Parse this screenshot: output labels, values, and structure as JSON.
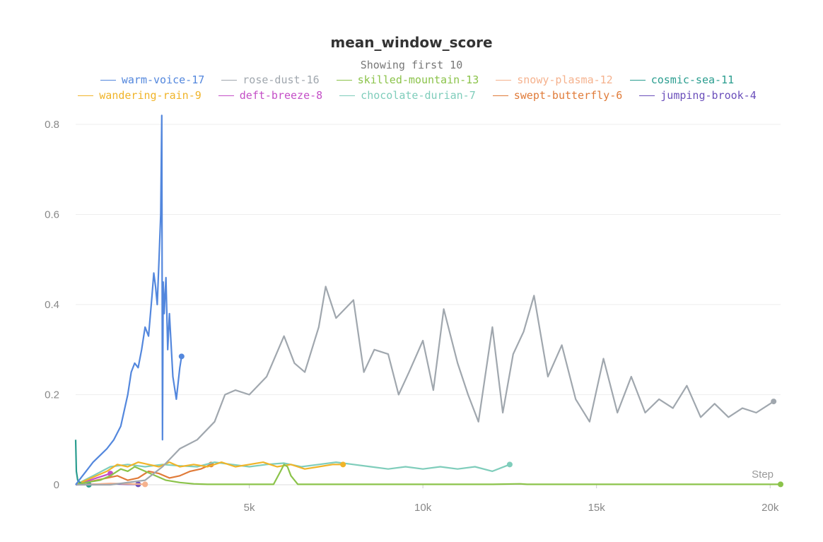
{
  "chart_data": {
    "type": "line",
    "title": "mean_window_score",
    "subtitle": "Showing first 10",
    "xlabel": "Step",
    "ylabel": "",
    "xlim": [
      0,
      20300
    ],
    "ylim": [
      0,
      0.8
    ],
    "x_ticks": [
      {
        "v": 5000,
        "label": "5k"
      },
      {
        "v": 10000,
        "label": "10k"
      },
      {
        "v": 15000,
        "label": "15k"
      },
      {
        "v": 20000,
        "label": "20k"
      }
    ],
    "y_ticks": [
      {
        "v": 0,
        "label": "0"
      },
      {
        "v": 0.2,
        "label": "0.2"
      },
      {
        "v": 0.4,
        "label": "0.4"
      },
      {
        "v": 0.6,
        "label": "0.6"
      },
      {
        "v": 0.8,
        "label": "0.8"
      }
    ],
    "grid": true,
    "legend_position": "top",
    "series": [
      {
        "name": "warm-voice-17",
        "color": "#5387DD",
        "x": [
          0,
          100,
          300,
          500,
          700,
          900,
          1100,
          1300,
          1500,
          1600,
          1700,
          1800,
          1900,
          2000,
          2100,
          2200,
          2250,
          2300,
          2350,
          2400,
          2450,
          2480,
          2500,
          2520,
          2550,
          2600,
          2650,
          2700,
          2800,
          2900,
          3000,
          3050
        ],
        "y": [
          0.0,
          0.01,
          0.03,
          0.05,
          0.065,
          0.08,
          0.1,
          0.13,
          0.2,
          0.25,
          0.27,
          0.26,
          0.3,
          0.35,
          0.33,
          0.42,
          0.47,
          0.44,
          0.4,
          0.5,
          0.6,
          0.82,
          0.1,
          0.45,
          0.38,
          0.46,
          0.3,
          0.38,
          0.24,
          0.19,
          0.26,
          0.285
        ]
      },
      {
        "name": "rose-dust-16",
        "color": "#A0A7AE",
        "x": [
          0,
          1000,
          2000,
          2500,
          3000,
          3500,
          4000,
          4300,
          4600,
          5000,
          5500,
          6000,
          6300,
          6600,
          7000,
          7200,
          7500,
          8000,
          8300,
          8600,
          9000,
          9300,
          9600,
          10000,
          10300,
          10600,
          11000,
          11300,
          11600,
          12000,
          12300,
          12600,
          12900,
          13200,
          13600,
          14000,
          14400,
          14800,
          15200,
          15600,
          16000,
          16400,
          16800,
          17200,
          17600,
          18000,
          18400,
          18800,
          19200,
          19600,
          20000,
          20100
        ],
        "y": [
          0.0,
          0.0,
          0.01,
          0.04,
          0.08,
          0.1,
          0.14,
          0.2,
          0.21,
          0.2,
          0.24,
          0.33,
          0.27,
          0.25,
          0.35,
          0.44,
          0.37,
          0.41,
          0.25,
          0.3,
          0.29,
          0.2,
          0.25,
          0.32,
          0.21,
          0.39,
          0.27,
          0.2,
          0.14,
          0.35,
          0.16,
          0.29,
          0.34,
          0.42,
          0.24,
          0.31,
          0.19,
          0.14,
          0.28,
          0.16,
          0.24,
          0.16,
          0.19,
          0.17,
          0.22,
          0.15,
          0.18,
          0.15,
          0.17,
          0.16,
          0.18,
          0.185
        ]
      },
      {
        "name": "skilled-mountain-13",
        "color": "#8BC34A",
        "x": [
          0,
          300,
          700,
          1000,
          1300,
          1500,
          1700,
          2000,
          2300,
          2600,
          3000,
          3400,
          3800,
          4200,
          4600,
          5000,
          5400,
          5700,
          5900,
          6000,
          6100,
          6200,
          6400,
          7000,
          8000,
          9000,
          10000,
          11000,
          12000,
          12800,
          13000,
          14000,
          15000,
          16000,
          17000,
          18000,
          19000,
          20000,
          20300
        ],
        "y": [
          0.0,
          0.005,
          0.01,
          0.02,
          0.035,
          0.03,
          0.04,
          0.03,
          0.02,
          0.01,
          0.005,
          0.002,
          0.001,
          0.001,
          0.001,
          0.001,
          0.001,
          0.001,
          0.03,
          0.045,
          0.04,
          0.02,
          0.001,
          0.001,
          0.001,
          0.001,
          0.001,
          0.001,
          0.001,
          0.002,
          0.001,
          0.001,
          0.001,
          0.001,
          0.001,
          0.001,
          0.001,
          0.001,
          0.001
        ]
      },
      {
        "name": "snowy-plasma-12",
        "color": "#F5B28E",
        "x": [
          0,
          500,
          1000,
          1500,
          2000
        ],
        "y": [
          0.0,
          0.001,
          0.003,
          0.002,
          0.001
        ]
      },
      {
        "name": "cosmic-sea-11",
        "color": "#2A9D8F",
        "x": [
          0,
          20,
          60,
          120,
          200,
          300,
          380
        ],
        "y": [
          0.1,
          0.03,
          0.01,
          0.005,
          0.002,
          0.001,
          0.0
        ]
      },
      {
        "name": "wandering-rain-9",
        "color": "#F0B429",
        "x": [
          0,
          300,
          600,
          900,
          1200,
          1500,
          1800,
          2100,
          2400,
          2700,
          3000,
          3400,
          3800,
          4200,
          4600,
          5000,
          5400,
          5800,
          6200,
          6600,
          7000,
          7400,
          7700
        ],
        "y": [
          0.0,
          0.01,
          0.02,
          0.03,
          0.045,
          0.04,
          0.05,
          0.045,
          0.04,
          0.05,
          0.04,
          0.045,
          0.04,
          0.05,
          0.04,
          0.045,
          0.05,
          0.04,
          0.045,
          0.035,
          0.04,
          0.045,
          0.045
        ]
      },
      {
        "name": "deft-breeze-8",
        "color": "#C44FC7",
        "x": [
          0,
          200,
          400,
          600,
          800,
          1000
        ],
        "y": [
          0.0,
          0.005,
          0.01,
          0.015,
          0.02,
          0.025
        ]
      },
      {
        "name": "chocolate-durian-7",
        "color": "#7FCDBB",
        "x": [
          0,
          500,
          1000,
          1500,
          2000,
          2500,
          3000,
          3500,
          4000,
          4500,
          5000,
          5500,
          6000,
          6500,
          7000,
          7500,
          8000,
          8500,
          9000,
          9500,
          10000,
          10500,
          11000,
          11500,
          12000,
          12500
        ],
        "y": [
          0.0,
          0.02,
          0.04,
          0.045,
          0.04,
          0.045,
          0.042,
          0.04,
          0.05,
          0.045,
          0.04,
          0.045,
          0.048,
          0.04,
          0.045,
          0.05,
          0.045,
          0.04,
          0.035,
          0.04,
          0.035,
          0.04,
          0.035,
          0.04,
          0.03,
          0.045
        ]
      },
      {
        "name": "swept-butterfly-6",
        "color": "#E07B39",
        "x": [
          0,
          300,
          600,
          900,
          1200,
          1500,
          1800,
          2100,
          2400,
          2700,
          3000,
          3300,
          3600,
          3900
        ],
        "y": [
          0.0,
          0.005,
          0.01,
          0.015,
          0.02,
          0.01,
          0.015,
          0.03,
          0.025,
          0.015,
          0.02,
          0.03,
          0.035,
          0.045
        ]
      },
      {
        "name": "jumping-brook-4",
        "color": "#6B4FBB",
        "x": [
          0,
          500,
          1000,
          1500,
          1800
        ],
        "y": [
          0.0,
          0.001,
          0.002,
          0.001,
          0.001
        ]
      }
    ]
  }
}
